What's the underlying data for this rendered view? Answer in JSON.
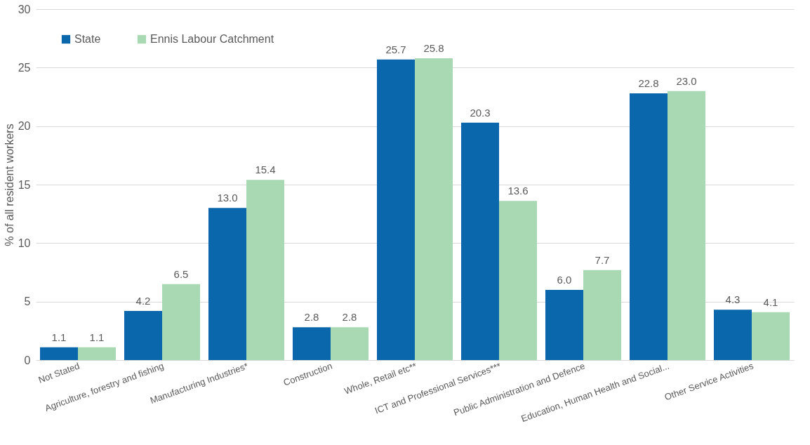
{
  "chart_data": {
    "type": "bar",
    "ylabel": "% of all resident workers",
    "categories": [
      "Not Stated",
      "Agriculture, forestry and fishing",
      "Manufacturing Industries*",
      "Construction",
      "Whole, Retail etc**",
      "ICT and Professional Services***",
      "Public Administration and Defence",
      "Education, Human Health and Social...",
      "Other Service Activities"
    ],
    "series": [
      {
        "name": "State",
        "color": "#0b67ab",
        "values": [
          1.1,
          4.2,
          13.0,
          2.8,
          25.7,
          20.3,
          6.0,
          22.8,
          4.3
        ],
        "value_labels": [
          "1.1",
          "4.2",
          "13.0",
          "2.8",
          "25.7",
          "20.3",
          "6.0",
          "22.8",
          "4.3"
        ]
      },
      {
        "name": "Ennis Labour Catchment",
        "color": "#a9d9b3",
        "values": [
          1.1,
          6.5,
          15.4,
          2.8,
          25.8,
          13.6,
          7.7,
          23.0,
          4.1
        ],
        "value_labels": [
          "1.1",
          "6.5",
          "15.4",
          "2.8",
          "25.8",
          "13.6",
          "7.7",
          "23.0",
          "4.1"
        ]
      }
    ],
    "ylim": [
      0,
      30
    ],
    "yticks": [
      0,
      5,
      10,
      15,
      20,
      25,
      30
    ],
    "grid": "y",
    "legend": "top left"
  }
}
